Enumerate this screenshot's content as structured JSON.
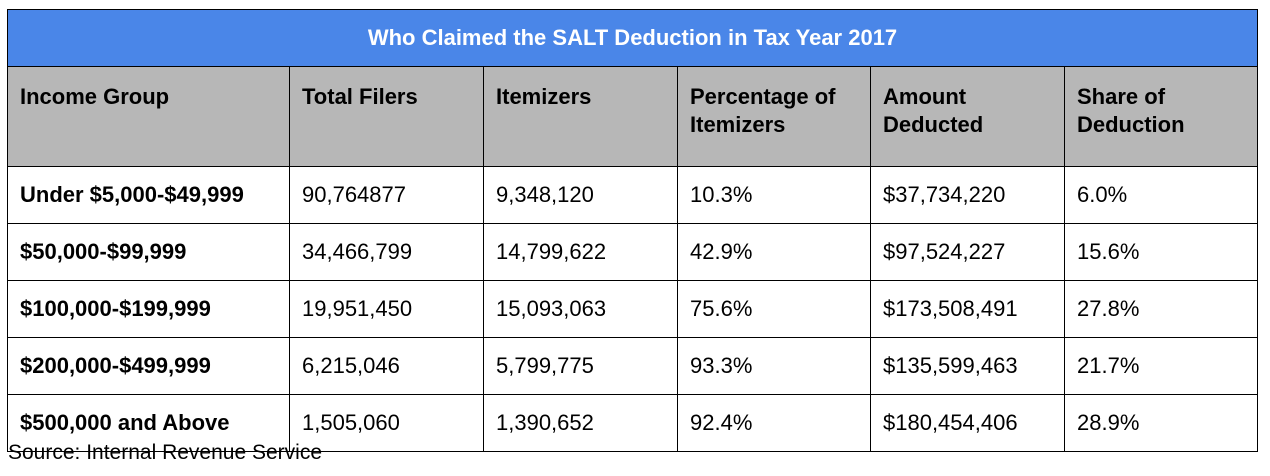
{
  "table": {
    "title": "Who Claimed the SALT Deduction in Tax Year 2017",
    "headers": [
      "Income Group",
      "Total Filers",
      "Itemizers",
      "Percentage of Itemizers",
      "Amount Deducted",
      "Share of Deduction"
    ],
    "rows": [
      [
        "Under $5,000-$49,999",
        "90,764877",
        "9,348,120",
        "10.3%",
        "$37,734,220",
        "6.0%"
      ],
      [
        "$50,000-$99,999",
        "34,466,799",
        "14,799,622",
        "42.9%",
        "$97,524,227",
        "15.6%"
      ],
      [
        "$100,000-$199,999",
        "19,951,450",
        "15,093,063",
        "75.6%",
        "$173,508,491",
        "27.8%"
      ],
      [
        "$200,000-$499,999",
        "6,215,046",
        "5,799,775",
        "93.3%",
        "$135,599,463",
        "21.7%"
      ],
      [
        "$500,000 and Above",
        "1,505,060",
        "1,390,652",
        "92.4%",
        "$180,454,406",
        "28.9%"
      ]
    ]
  },
  "source": "Source: Internal Revenue Service",
  "colors": {
    "title_background": "#4a86e8",
    "title_text": "#ffffff",
    "header_background": "#b7b7b7",
    "border": "#000000"
  }
}
